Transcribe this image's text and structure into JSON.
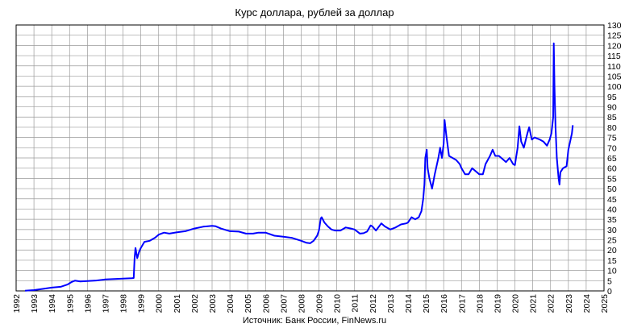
{
  "chart_data": {
    "type": "line",
    "title": "Курс доллара, рублей за доллар",
    "source": "Источник: Банк России, FinNews.ru",
    "xlabel": "",
    "ylabel": "",
    "x_ticks": [
      "1992",
      "1993",
      "1994",
      "1995",
      "1996",
      "1997",
      "1998",
      "1999",
      "2000",
      "2001",
      "2002",
      "2003",
      "2004",
      "2005",
      "2006",
      "2007",
      "2008",
      "2009",
      "2010",
      "2011",
      "2012",
      "2013",
      "2014",
      "2015",
      "2016",
      "2017",
      "2018",
      "2019",
      "2020",
      "2021",
      "2022",
      "2023",
      "2024",
      "2025"
    ],
    "y_ticks": [
      0,
      5,
      10,
      15,
      20,
      25,
      30,
      35,
      40,
      45,
      50,
      55,
      60,
      65,
      70,
      75,
      80,
      85,
      90,
      95,
      100,
      105,
      110,
      115,
      120,
      125,
      130
    ],
    "xlim": [
      1992,
      2025
    ],
    "ylim": [
      0,
      130
    ],
    "y_axis_side": "right",
    "grid": true,
    "series": [
      {
        "color": "#0000ff",
        "points": [
          [
            1992.5,
            0.13
          ],
          [
            1993.0,
            0.4
          ],
          [
            1993.5,
            1.0
          ],
          [
            1994.0,
            1.6
          ],
          [
            1994.5,
            2.0
          ],
          [
            1994.9,
            3.2
          ],
          [
            1995.1,
            4.3
          ],
          [
            1995.3,
            5.0
          ],
          [
            1995.6,
            4.6
          ],
          [
            1996.0,
            4.8
          ],
          [
            1996.5,
            5.1
          ],
          [
            1997.0,
            5.6
          ],
          [
            1997.5,
            5.8
          ],
          [
            1998.0,
            6.0
          ],
          [
            1998.5,
            6.2
          ],
          [
            1998.6,
            6.3
          ],
          [
            1998.65,
            16
          ],
          [
            1998.7,
            21
          ],
          [
            1998.8,
            16
          ],
          [
            1998.9,
            19
          ],
          [
            1999.0,
            21
          ],
          [
            1999.2,
            24
          ],
          [
            1999.5,
            24.5
          ],
          [
            1999.8,
            26
          ],
          [
            2000.0,
            27.5
          ],
          [
            2000.3,
            28.5
          ],
          [
            2000.6,
            28.0
          ],
          [
            2001.0,
            28.6
          ],
          [
            2001.5,
            29.2
          ],
          [
            2002.0,
            30.5
          ],
          [
            2002.5,
            31.4
          ],
          [
            2003.0,
            31.8
          ],
          [
            2003.2,
            31.6
          ],
          [
            2003.5,
            30.5
          ],
          [
            2004.0,
            29.2
          ],
          [
            2004.5,
            29.0
          ],
          [
            2004.9,
            28.0
          ],
          [
            2005.3,
            28.0
          ],
          [
            2005.6,
            28.5
          ],
          [
            2006.0,
            28.5
          ],
          [
            2006.5,
            27.0
          ],
          [
            2007.0,
            26.5
          ],
          [
            2007.5,
            25.9
          ],
          [
            2008.0,
            24.5
          ],
          [
            2008.3,
            23.5
          ],
          [
            2008.5,
            23.3
          ],
          [
            2008.7,
            24.5
          ],
          [
            2008.9,
            27.0
          ],
          [
            2009.0,
            29.5
          ],
          [
            2009.1,
            35.5
          ],
          [
            2009.15,
            36.0
          ],
          [
            2009.3,
            33.5
          ],
          [
            2009.5,
            31.5
          ],
          [
            2009.7,
            30.0
          ],
          [
            2009.9,
            29.5
          ],
          [
            2010.2,
            29.5
          ],
          [
            2010.5,
            31.0
          ],
          [
            2010.8,
            30.5
          ],
          [
            2011.0,
            30.0
          ],
          [
            2011.3,
            28.0
          ],
          [
            2011.5,
            28.2
          ],
          [
            2011.7,
            29.0
          ],
          [
            2011.9,
            32.0
          ],
          [
            2012.0,
            31.5
          ],
          [
            2012.2,
            29.5
          ],
          [
            2012.5,
            33.0
          ],
          [
            2012.7,
            31.5
          ],
          [
            2013.0,
            30.0
          ],
          [
            2013.3,
            31.0
          ],
          [
            2013.6,
            32.5
          ],
          [
            2013.9,
            33.0
          ],
          [
            2014.0,
            33.5
          ],
          [
            2014.2,
            36.0
          ],
          [
            2014.4,
            35.0
          ],
          [
            2014.6,
            36.0
          ],
          [
            2014.75,
            39.0
          ],
          [
            2014.85,
            45.0
          ],
          [
            2014.92,
            52.0
          ],
          [
            2014.97,
            65.0
          ],
          [
            2015.05,
            69.0
          ],
          [
            2015.1,
            60.0
          ],
          [
            2015.2,
            55.0
          ],
          [
            2015.35,
            50.0
          ],
          [
            2015.5,
            57.0
          ],
          [
            2015.7,
            65.0
          ],
          [
            2015.8,
            70.0
          ],
          [
            2015.9,
            65.0
          ],
          [
            2016.0,
            72.0
          ],
          [
            2016.05,
            83.5
          ],
          [
            2016.15,
            76.0
          ],
          [
            2016.3,
            66.0
          ],
          [
            2016.5,
            65.0
          ],
          [
            2016.7,
            64.0
          ],
          [
            2016.9,
            62.0
          ],
          [
            2017.0,
            60.0
          ],
          [
            2017.2,
            57.0
          ],
          [
            2017.4,
            57.0
          ],
          [
            2017.6,
            60.0
          ],
          [
            2017.8,
            58.5
          ],
          [
            2018.0,
            57.0
          ],
          [
            2018.2,
            57.0
          ],
          [
            2018.35,
            62.0
          ],
          [
            2018.6,
            66.0
          ],
          [
            2018.75,
            69.0
          ],
          [
            2018.9,
            66.0
          ],
          [
            2019.1,
            66.0
          ],
          [
            2019.3,
            64.5
          ],
          [
            2019.5,
            63.0
          ],
          [
            2019.7,
            65.0
          ],
          [
            2019.9,
            62.0
          ],
          [
            2020.0,
            61.5
          ],
          [
            2020.15,
            70.0
          ],
          [
            2020.25,
            80.5
          ],
          [
            2020.35,
            73.0
          ],
          [
            2020.5,
            70.0
          ],
          [
            2020.7,
            77.0
          ],
          [
            2020.8,
            80.0
          ],
          [
            2020.95,
            74.0
          ],
          [
            2021.1,
            75.0
          ],
          [
            2021.4,
            74.0
          ],
          [
            2021.6,
            73.0
          ],
          [
            2021.8,
            71.0
          ],
          [
            2021.95,
            74.0
          ],
          [
            2022.05,
            77.0
          ],
          [
            2022.15,
            85.0
          ],
          [
            2022.18,
            121.0
          ],
          [
            2022.22,
            100.0
          ],
          [
            2022.28,
            80.0
          ],
          [
            2022.35,
            65.0
          ],
          [
            2022.45,
            55.0
          ],
          [
            2022.5,
            52.0
          ],
          [
            2022.55,
            58.0
          ],
          [
            2022.7,
            60.0
          ],
          [
            2022.9,
            61.0
          ],
          [
            2023.0,
            69.0
          ],
          [
            2023.1,
            73.0
          ],
          [
            2023.2,
            77.0
          ],
          [
            2023.25,
            81.0
          ]
        ]
      }
    ]
  }
}
